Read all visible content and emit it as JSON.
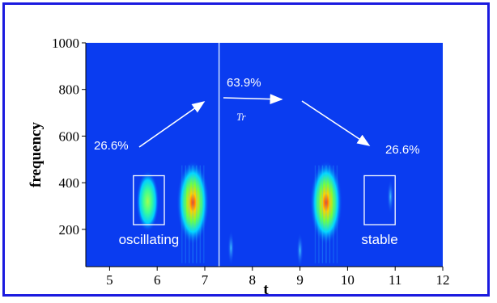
{
  "chart_data": {
    "type": "heatmap",
    "title": "",
    "xlabel": "t",
    "ylabel": "frequency",
    "xlim": [
      4.5,
      12
    ],
    "ylim": [
      40,
      1000
    ],
    "x_ticks": [
      "5",
      "6",
      "7",
      "8",
      "9",
      "10",
      "11",
      "12"
    ],
    "y_ticks": [
      "200",
      "400",
      "600",
      "800",
      "1000"
    ],
    "background_color": "#0a3cf0",
    "divider_line_t": 7.3,
    "hotspots": [
      {
        "t": 5.8,
        "frequency": 320,
        "intensity": 0.6
      },
      {
        "t": 6.75,
        "frequency": 315,
        "intensity": 1.0
      },
      {
        "t": 9.55,
        "frequency": 315,
        "intensity": 1.0
      },
      {
        "t": 7.55,
        "frequency": 120,
        "intensity": 0.15
      },
      {
        "t": 9.0,
        "frequency": 110,
        "intensity": 0.25
      },
      {
        "t": 10.9,
        "frequency": 340,
        "intensity": 0.15
      }
    ],
    "boxes": [
      {
        "label": "oscillating",
        "t_range": [
          5.5,
          6.15
        ],
        "f_range": [
          220,
          430
        ]
      },
      {
        "label": "stable",
        "t_range": [
          10.35,
          11.0
        ],
        "f_range": [
          220,
          430
        ]
      }
    ],
    "annotations": {
      "left_percent": "26.6%",
      "middle_percent": "63.9%",
      "right_percent": "26.6%",
      "tr_label": "Tr"
    }
  }
}
